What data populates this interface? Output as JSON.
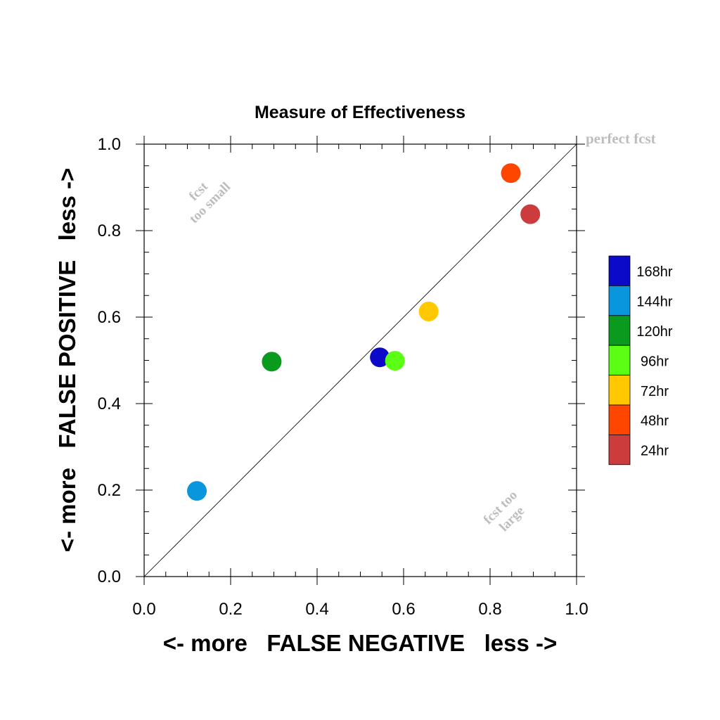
{
  "chart_data": {
    "type": "scatter",
    "title": "Measure of Effectiveness",
    "xlabel": "<- more   FALSE NEGATIVE   less ->",
    "ylabel": "<- more   FALSE POSITIVE   less ->",
    "xlim": [
      0.0,
      1.0
    ],
    "ylim": [
      0.0,
      1.0
    ],
    "xticks": [
      "0.0",
      "0.2",
      "0.4",
      "0.6",
      "0.8",
      "1.0"
    ],
    "yticks": [
      "0.0",
      "0.2",
      "0.4",
      "0.6",
      "0.8",
      "1.0"
    ],
    "grid": false,
    "legend_position": "right",
    "annotations": {
      "perfect": "perfect fcst",
      "too_small_1": "fcst",
      "too_small_2": "too small",
      "too_large_1": "fcst too",
      "too_large_2": "large"
    },
    "series": [
      {
        "name": "168hr",
        "color": "#0a0ac8",
        "x": 0.545,
        "y": 0.507
      },
      {
        "name": "144hr",
        "color": "#0a96dc",
        "x": 0.122,
        "y": 0.198
      },
      {
        "name": "120hr",
        "color": "#0a9a1e",
        "x": 0.295,
        "y": 0.497
      },
      {
        "name": "96hr",
        "color": "#5aff14",
        "x": 0.58,
        "y": 0.499
      },
      {
        "name": "72hr",
        "color": "#ffc800",
        "x": 0.658,
        "y": 0.613
      },
      {
        "name": "48hr",
        "color": "#ff4600",
        "x": 0.848,
        "y": 0.933
      },
      {
        "name": "24hr",
        "color": "#cd3c3c",
        "x": 0.893,
        "y": 0.838
      }
    ]
  }
}
